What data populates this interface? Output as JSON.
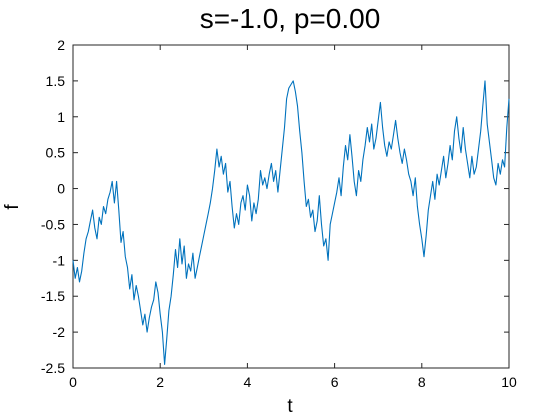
{
  "chart_data": {
    "type": "line",
    "title": "s=-1.0, p=0.00",
    "xlabel": "t",
    "ylabel": "f",
    "xlim": [
      0,
      10
    ],
    "ylim": [
      -2.5,
      2
    ],
    "x_ticks": [
      "0",
      "2",
      "4",
      "6",
      "8",
      "10"
    ],
    "y_ticks": [
      "-2.5",
      "-2",
      "-1.5",
      "-1",
      "-0.5",
      "0",
      "0.5",
      "1",
      "1.5",
      "2"
    ],
    "grid": false,
    "line_color": "#0072bd",
    "series": [
      {
        "x": [
          0,
          0.05,
          0.1,
          0.15,
          0.2,
          0.25,
          0.3,
          0.35,
          0.4,
          0.45,
          0.5,
          0.55,
          0.6,
          0.65,
          0.7,
          0.75,
          0.8,
          0.85,
          0.9,
          0.95,
          1.0,
          1.05,
          1.1,
          1.15,
          1.2,
          1.25,
          1.3,
          1.35,
          1.4,
          1.45,
          1.5,
          1.55,
          1.6,
          1.65,
          1.7,
          1.75,
          1.8,
          1.85,
          1.9,
          1.95,
          2.0,
          2.05,
          2.1,
          2.15,
          2.2,
          2.25,
          2.3,
          2.35,
          2.4,
          2.45,
          2.5,
          2.55,
          2.6,
          2.65,
          2.7,
          2.75,
          2.8,
          2.85,
          2.9,
          2.95,
          3.0,
          3.05,
          3.1,
          3.15,
          3.2,
          3.25,
          3.3,
          3.35,
          3.4,
          3.45,
          3.5,
          3.55,
          3.6,
          3.65,
          3.7,
          3.75,
          3.8,
          3.85,
          3.9,
          3.95,
          4.0,
          4.05,
          4.1,
          4.15,
          4.2,
          4.25,
          4.3,
          4.35,
          4.4,
          4.45,
          4.5,
          4.55,
          4.6,
          4.65,
          4.7,
          4.75,
          4.8,
          4.85,
          4.9,
          4.95,
          5.0,
          5.05,
          5.1,
          5.15,
          5.2,
          5.25,
          5.3,
          5.35,
          5.4,
          5.45,
          5.5,
          5.55,
          5.6,
          5.65,
          5.7,
          5.75,
          5.8,
          5.85,
          5.9,
          5.95,
          6.0,
          6.05,
          6.1,
          6.15,
          6.2,
          6.25,
          6.3,
          6.35,
          6.4,
          6.45,
          6.5,
          6.55,
          6.6,
          6.65,
          6.7,
          6.75,
          6.8,
          6.85,
          6.9,
          6.95,
          7.0,
          7.05,
          7.1,
          7.15,
          7.2,
          7.25,
          7.3,
          7.35,
          7.4,
          7.45,
          7.5,
          7.55,
          7.6,
          7.65,
          7.7,
          7.75,
          7.8,
          7.85,
          7.9,
          7.95,
          8.0,
          8.05,
          8.1,
          8.15,
          8.2,
          8.25,
          8.3,
          8.35,
          8.4,
          8.45,
          8.5,
          8.55,
          8.6,
          8.65,
          8.7,
          8.75,
          8.8,
          8.85,
          8.9,
          8.95,
          9.0,
          9.05,
          9.1,
          9.15,
          9.2,
          9.25,
          9.3,
          9.35,
          9.4,
          9.45,
          9.5,
          9.55,
          9.6,
          9.65,
          9.7,
          9.75,
          9.8,
          9.85,
          9.9,
          9.95,
          10.0
        ],
        "y": [
          -1.0,
          -1.25,
          -1.1,
          -1.3,
          -1.15,
          -0.9,
          -0.7,
          -0.6,
          -0.45,
          -0.3,
          -0.55,
          -0.7,
          -0.4,
          -0.5,
          -0.25,
          -0.35,
          -0.15,
          -0.05,
          0.1,
          -0.2,
          0.1,
          -0.3,
          -0.75,
          -0.6,
          -0.95,
          -1.1,
          -1.4,
          -1.2,
          -1.55,
          -1.35,
          -1.5,
          -1.7,
          -1.9,
          -1.75,
          -2.0,
          -1.8,
          -1.65,
          -1.55,
          -1.3,
          -1.45,
          -1.75,
          -2.0,
          -2.45,
          -2.1,
          -1.7,
          -1.5,
          -1.2,
          -0.85,
          -1.1,
          -0.7,
          -1.05,
          -0.8,
          -1.25,
          -1.05,
          -1.15,
          -0.9,
          -1.25,
          -1.1,
          -0.95,
          -0.8,
          -0.65,
          -0.5,
          -0.35,
          -0.2,
          0.0,
          0.25,
          0.55,
          0.3,
          0.45,
          0.2,
          0.35,
          -0.05,
          0.1,
          -0.25,
          -0.55,
          -0.35,
          -0.5,
          -0.2,
          -0.1,
          -0.3,
          0.05,
          -0.1,
          -0.45,
          -0.2,
          -0.35,
          -0.15,
          0.25,
          0.05,
          0.15,
          0.0,
          0.2,
          0.35,
          0.1,
          0.25,
          -0.05,
          0.25,
          0.55,
          0.85,
          1.25,
          1.4,
          1.45,
          1.5,
          1.35,
          1.15,
          0.8,
          0.5,
          0.1,
          -0.25,
          -0.15,
          -0.4,
          -0.3,
          -0.6,
          -0.45,
          -0.1,
          -0.5,
          -0.8,
          -0.7,
          -1.0,
          -0.5,
          -0.35,
          -0.2,
          -0.05,
          0.15,
          -0.1,
          0.3,
          0.6,
          0.4,
          0.75,
          0.45,
          0.1,
          -0.1,
          0.25,
          0.1,
          0.4,
          0.6,
          0.85,
          0.65,
          0.9,
          0.55,
          0.7,
          0.95,
          1.2,
          0.85,
          0.6,
          0.45,
          0.65,
          0.55,
          0.75,
          0.95,
          0.7,
          0.5,
          0.35,
          0.55,
          0.4,
          0.2,
          0.1,
          -0.1,
          0.15,
          -0.25,
          -0.5,
          -0.7,
          -0.95,
          -0.65,
          -0.3,
          -0.1,
          0.1,
          -0.15,
          0.2,
          0.05,
          0.25,
          0.45,
          0.15,
          0.35,
          0.6,
          0.4,
          0.8,
          1.0,
          0.7,
          0.5,
          0.85,
          0.55,
          0.35,
          0.15,
          0.45,
          0.2,
          0.3,
          0.55,
          0.8,
          1.15,
          1.5,
          0.9,
          0.65,
          0.4,
          0.15,
          0.05,
          0.35,
          0.2,
          0.4,
          0.3,
          0.85,
          1.25
        ]
      }
    ]
  }
}
